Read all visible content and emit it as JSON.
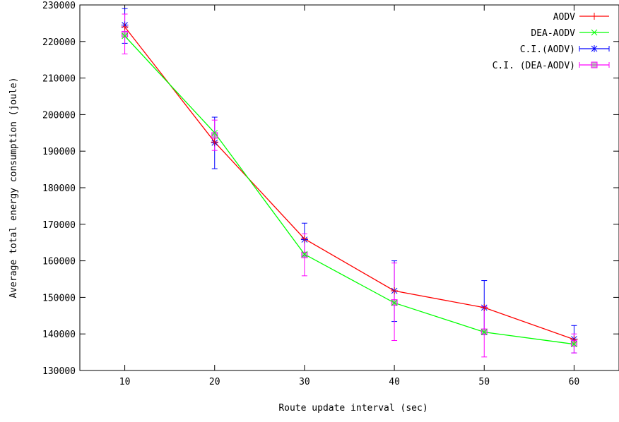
{
  "chart_data": {
    "type": "line",
    "title": "",
    "xlabel": "Route update interval (sec)",
    "ylabel": "Average total energy consumption (joule)",
    "xlim": [
      5,
      65
    ],
    "ylim": [
      130000,
      230000
    ],
    "xticks": [
      10,
      20,
      30,
      40,
      50,
      60
    ],
    "yticks": [
      130000,
      140000,
      150000,
      160000,
      170000,
      180000,
      190000,
      200000,
      210000,
      220000,
      230000
    ],
    "x": [
      10,
      20,
      30,
      40,
      50,
      60
    ],
    "grid": false,
    "legend_position": "top-right",
    "series": [
      {
        "name": "AODV",
        "color": "#ff0000",
        "marker": "plus",
        "values": [
          224000,
          192500,
          166000,
          151800,
          147200,
          138500
        ]
      },
      {
        "name": "DEA-AODV",
        "color": "#00ff00",
        "marker": "cross",
        "values": [
          221500,
          195000,
          161800,
          148500,
          140500,
          137200
        ]
      }
    ],
    "confidence_intervals": [
      {
        "name": "C.I.(AODV)",
        "color": "#0000ff",
        "marker": "star",
        "mean": [
          224500,
          192300,
          165800,
          151800,
          147200,
          138600
        ],
        "low": [
          219500,
          185200,
          161300,
          143400,
          139800,
          134800
        ],
        "high": [
          229000,
          199300,
          170300,
          160000,
          154600,
          142300
        ]
      },
      {
        "name": "C.I. (DEA-AODV)",
        "color": "#ff00ff",
        "marker": "box",
        "mean": [
          222000,
          194300,
          161600,
          148600,
          140600,
          137400
        ],
        "low": [
          216600,
          190200,
          155900,
          138200,
          133700,
          134800
        ],
        "high": [
          227500,
          198500,
          167400,
          159400,
          147500,
          140000
        ]
      }
    ]
  }
}
